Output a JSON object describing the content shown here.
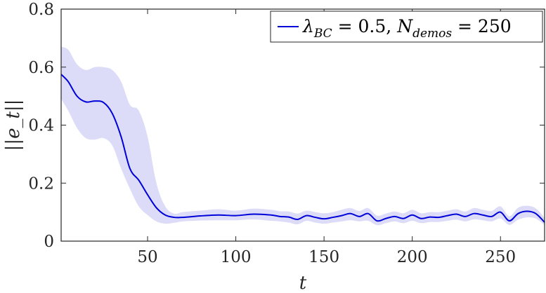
{
  "chart_data": {
    "type": "line",
    "xlabel": "t",
    "ylabel": "||e_t||",
    "xlim": [
      1,
      275
    ],
    "ylim": [
      0,
      0.8
    ],
    "xticks": [
      50,
      100,
      150,
      200,
      250
    ],
    "yticks": [
      0,
      0.2,
      0.4,
      0.6,
      0.8
    ],
    "xtick_labels": [
      "50",
      "100",
      "150",
      "200",
      "250"
    ],
    "ytick_labels": [
      "0",
      "0.2",
      "0.4",
      "0.6",
      "0.8"
    ],
    "grid": false,
    "legend": {
      "placement": "top-right",
      "entries": [
        {
          "lambda_symbol": "λ",
          "lambda_sub": "BC",
          "lambda_val": " = 0.5, ",
          "n_symbol": "N",
          "n_sub": "demos",
          "n_val": " = 250"
        }
      ]
    },
    "series": [
      {
        "color": "#0000d9",
        "band_color": "#dcdcf9",
        "x": [
          1,
          5,
          10,
          15,
          20,
          25,
          30,
          35,
          40,
          45,
          50,
          55,
          60,
          65,
          70,
          80,
          90,
          100,
          110,
          120,
          125,
          130,
          135,
          140,
          145,
          150,
          155,
          160,
          165,
          170,
          175,
          180,
          185,
          190,
          195,
          200,
          205,
          210,
          215,
          220,
          225,
          230,
          235,
          240,
          245,
          250,
          255,
          260,
          265,
          270,
          275
        ],
        "y": [
          0.575,
          0.55,
          0.5,
          0.48,
          0.483,
          0.478,
          0.44,
          0.36,
          0.25,
          0.21,
          0.16,
          0.115,
          0.09,
          0.082,
          0.082,
          0.087,
          0.09,
          0.088,
          0.093,
          0.09,
          0.085,
          0.083,
          0.075,
          0.088,
          0.082,
          0.077,
          0.082,
          0.088,
          0.095,
          0.085,
          0.095,
          0.07,
          0.078,
          0.085,
          0.078,
          0.09,
          0.078,
          0.083,
          0.082,
          0.088,
          0.093,
          0.085,
          0.095,
          0.09,
          0.085,
          0.1,
          0.07,
          0.095,
          0.103,
          0.095,
          0.065
        ],
        "lower": [
          0.49,
          0.45,
          0.39,
          0.355,
          0.35,
          0.355,
          0.33,
          0.25,
          0.18,
          0.12,
          0.09,
          0.068,
          0.06,
          0.063,
          0.068,
          0.071,
          0.072,
          0.072,
          0.075,
          0.07,
          0.068,
          0.064,
          0.058,
          0.07,
          0.064,
          0.06,
          0.064,
          0.068,
          0.072,
          0.068,
          0.07,
          0.055,
          0.062,
          0.068,
          0.062,
          0.07,
          0.062,
          0.066,
          0.066,
          0.07,
          0.074,
          0.068,
          0.075,
          0.072,
          0.068,
          0.078,
          0.056,
          0.074,
          0.082,
          0.078,
          0.055
        ],
        "upper": [
          0.67,
          0.66,
          0.61,
          0.59,
          0.6,
          0.6,
          0.59,
          0.55,
          0.47,
          0.45,
          0.36,
          0.2,
          0.12,
          0.095,
          0.1,
          0.105,
          0.11,
          0.105,
          0.112,
          0.108,
          0.103,
          0.102,
          0.095,
          0.105,
          0.1,
          0.096,
          0.1,
          0.108,
          0.114,
          0.104,
          0.114,
          0.088,
          0.095,
          0.102,
          0.096,
          0.108,
          0.096,
          0.1,
          0.1,
          0.105,
          0.11,
          0.102,
          0.114,
          0.108,
          0.104,
          0.12,
          0.086,
          0.115,
          0.122,
          0.113,
          0.08
        ]
      }
    ]
  }
}
